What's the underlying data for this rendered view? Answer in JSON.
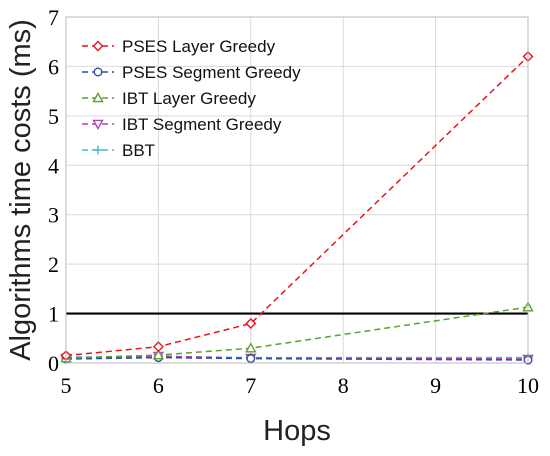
{
  "chart_data": {
    "type": "line",
    "title": "",
    "xlabel": "Hops",
    "ylabel": "Algorithms time costs (ms)",
    "xlim": [
      5,
      10
    ],
    "ylim": [
      0,
      7
    ],
    "xticks": [
      5,
      6,
      7,
      8,
      9,
      10
    ],
    "yticks": [
      0,
      1,
      2,
      3,
      4,
      5,
      6,
      7
    ],
    "grid": true,
    "legend_position": "top-left",
    "reference_line": {
      "y": 1,
      "color": "#000000"
    },
    "series": [
      {
        "name": "PSES Layer Greedy",
        "color": "#e8141a",
        "marker": "diamond",
        "x": [
          5,
          6,
          7,
          10
        ],
        "y": [
          0.15,
          0.33,
          0.8,
          6.2
        ]
      },
      {
        "name": "PSES Segment Greedy",
        "color": "#2e4fa3",
        "marker": "circle",
        "x": [
          5,
          6,
          7,
          10
        ],
        "y": [
          0.08,
          0.11,
          0.09,
          0.06
        ]
      },
      {
        "name": "IBT Layer Greedy",
        "color": "#5aa22d",
        "marker": "triangle-up",
        "x": [
          5,
          6,
          7,
          10
        ],
        "y": [
          0.1,
          0.16,
          0.3,
          1.13
        ]
      },
      {
        "name": "IBT Segment Greedy",
        "color": "#b043b5",
        "marker": "triangle-down",
        "x": [
          5,
          6,
          7,
          10
        ],
        "y": [
          0.1,
          0.14,
          0.1,
          0.08
        ]
      },
      {
        "name": "BBT",
        "color": "#3fb8d0",
        "marker": "plus",
        "x": [
          5,
          6,
          7,
          10
        ],
        "y": [
          0.12,
          0.13,
          0.11,
          0.11
        ]
      }
    ]
  }
}
